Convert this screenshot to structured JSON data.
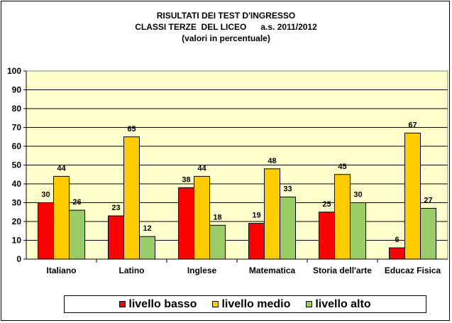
{
  "chart_data": {
    "type": "bar",
    "title_lines": [
      "RISULTATI DEI TEST D'INGRESSO",
      "CLASSI TERZE  DEL LICEO      a.s. 2011/2012",
      "(valori in percentuale)"
    ],
    "categories": [
      "Italiano",
      "Latino",
      "Inglese",
      "Matematica",
      "Storia dell'arte",
      "Educaz Fisica"
    ],
    "series": [
      {
        "name": "livello basso",
        "color": "#ff0000",
        "values": [
          30,
          23,
          38,
          19,
          25,
          6
        ]
      },
      {
        "name": "livello medio",
        "color": "#ffcc00",
        "values": [
          44,
          65,
          44,
          48,
          45,
          67
        ]
      },
      {
        "name": "livello alto",
        "color": "#99cc66",
        "values": [
          26,
          12,
          18,
          33,
          30,
          27
        ]
      }
    ],
    "ylim": [
      0,
      100
    ],
    "yticks": [
      0,
      10,
      20,
      30,
      40,
      50,
      60,
      70,
      80,
      90,
      100
    ],
    "grid": true,
    "plot_background": "#ffffcc",
    "legend_position": "bottom"
  }
}
